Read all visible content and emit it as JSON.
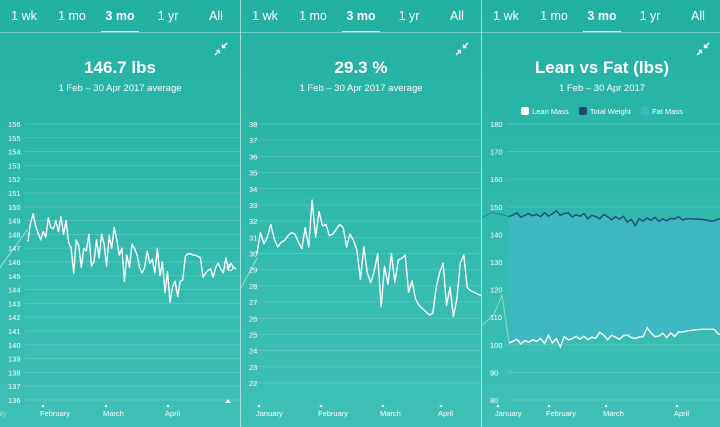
{
  "tabs": [
    "1 wk",
    "1 mo",
    "3 mo",
    "1 yr",
    "All"
  ],
  "active_tab": "3 mo",
  "colors": {
    "line": "#ffffff",
    "grid": "rgba(255,255,255,0.22)",
    "lean": "#ffffff",
    "total": "#1f4a73",
    "fat_fill": "#3eb7c3"
  },
  "icons": {
    "collapse": "collapse-arrows-icon"
  },
  "panels": [
    {
      "title": "146.7 lbs",
      "subtitle": "1 Feb – 30 Apr 2017 average",
      "chart_data": {
        "type": "line",
        "ylim": [
          136,
          156
        ],
        "yticks": [
          136,
          137,
          138,
          139,
          140,
          141,
          142,
          143,
          144,
          145,
          146,
          147,
          148,
          149,
          150,
          151,
          152,
          153,
          154,
          155,
          156
        ],
        "xticks": [
          "February",
          "March",
          "April"
        ],
        "x_edge_labels": [
          "uly"
        ],
        "series": [
          {
            "values": [
              147.5,
              148.8,
              149.5,
              148.6,
              148.1,
              147.6,
              148.2,
              147.8,
              149.2,
              148.5,
              148.4,
              149.0,
              148.2,
              149.3,
              148.0,
              149.0,
              147.4,
              147.0,
              145.2,
              147.6,
              147.2,
              145.6,
              147.0,
              146.8,
              148.0,
              145.7,
              146.0,
              147.6,
              146.3,
              148.0,
              147.3,
              145.7,
              147.9,
              147.0,
              148.5,
              147.6,
              146.5,
              147.0,
              144.6,
              146.5,
              145.6,
              147.3,
              147.0,
              146.5,
              145.6,
              145.2,
              145.6,
              146.8,
              145.9,
              146.2,
              145.2,
              147.0,
              145.0,
              146.0,
              143.8,
              145.3,
              143.1,
              144.2,
              144.6,
              143.5,
              144.6,
              144.7,
              146.4,
              146.6,
              146.6,
              146.5,
              146.5,
              146.4,
              146.3,
              144.9,
              145.2,
              145.4,
              145.5,
              144.9,
              145.6,
              145.9,
              145.5,
              145.2,
              146.3,
              145.5,
              145.9,
              145.6,
              145.5
            ]
          }
        ]
      }
    },
    {
      "title": "29.3 %",
      "subtitle": "1 Feb – 30 Apr 2017 average",
      "chart_data": {
        "type": "line",
        "ylim": [
          22,
          38
        ],
        "yticks": [
          22,
          23,
          24,
          25,
          26,
          27,
          28,
          29,
          30,
          31,
          32,
          33,
          34,
          35,
          36,
          37,
          38
        ],
        "xticks": [
          "January",
          "February",
          "March",
          "April"
        ],
        "series": [
          {
            "values": [
              30.0,
              31.3,
              30.6,
              31.0,
              31.8,
              30.9,
              30.4,
              30.7,
              30.8,
              31.1,
              31.3,
              31.2,
              30.7,
              30.3,
              31.6,
              30.4,
              33.3,
              31.0,
              32.6,
              31.7,
              31.8,
              31.1,
              31.2,
              31.5,
              31.8,
              31.6,
              30.4,
              31.2,
              30.8,
              30.2,
              28.4,
              30.4,
              28.8,
              28.2,
              28.9,
              30.0,
              26.7,
              29.2,
              28.1,
              30.0,
              28.2,
              29.6,
              29.7,
              29.9,
              27.6,
              28.3,
              27.2,
              26.8,
              26.6,
              26.4,
              26.2,
              26.3,
              27.9,
              28.8,
              29.4,
              26.8,
              27.9,
              26.1,
              27.2,
              29.4,
              29.9,
              27.9,
              27.7,
              27.6,
              27.5,
              27.4
            ]
          }
        ]
      }
    },
    {
      "title": "Lean vs Fat (lbs)",
      "subtitle": "1 Feb – 30 Apr 2017",
      "legend": [
        "Lean Mass",
        "Total Weight",
        "Fat Mass"
      ],
      "chart_data": {
        "type": "area",
        "ylim": [
          80,
          180
        ],
        "yticks": [
          80,
          90,
          100,
          110,
          120,
          130,
          140,
          150,
          160,
          170,
          180
        ],
        "xticks": [
          "January",
          "February",
          "March",
          "April"
        ],
        "series": [
          {
            "name": "Total Weight",
            "values": [
              146.5,
              147.0,
              147.8,
              146.2,
              146.9,
              147.5,
              146.7,
              147.3,
              146.4,
              147.9,
              146.6,
              147.5,
              148.6,
              146.9,
              147.6,
              147.8,
              146.3,
              147.1,
              146.6,
              147.5,
              145.6,
              146.9,
              146.5,
              145.6,
              147.2,
              146.4,
              145.3,
              146.4,
              145.5,
              146.6,
              144.5,
              145.4,
              143.2,
              145.7,
              144.8,
              145.9,
              145.1,
              146.2,
              144.7,
              145.6,
              144.9,
              145.8,
              145.6,
              146.4,
              145.2,
              145.7,
              145.7,
              145.5,
              145.5,
              145.4,
              145.3,
              144.8,
              144.9,
              145.5,
              145.6
            ]
          },
          {
            "name": "Lean Mass",
            "values": [
              100.6,
              101.3,
              102.0,
              100.3,
              101.6,
              100.9,
              101.8,
              101.2,
              102.3,
              100.5,
              103.4,
              100.6,
              102.3,
              99.2,
              103.0,
              101.8,
              102.2,
              103.0,
              102.0,
              103.1,
              101.9,
              102.7,
              102.4,
              104.5,
              103.5,
              101.8,
              103.5,
              102.8,
              102.0,
              103.3,
              103.6,
              102.6,
              102.3,
              102.8,
              102.9,
              106.2,
              104.3,
              102.9,
              103.2,
              104.2,
              102.6,
              104.3,
              103.0,
              104.7,
              104.6,
              105.0,
              105.2,
              105.4,
              105.5,
              105.6,
              105.6,
              105.6,
              105.6,
              104.0,
              103.6
            ]
          },
          {
            "name": "Fat Mass",
            "values": [
              45.9,
              45.7,
              45.8,
              45.9,
              45.3,
              46.6,
              44.9,
              46.1,
              44.1,
              47.4,
              43.2,
              46.9,
              46.3,
              47.7,
              44.6,
              46.0,
              44.1,
              44.1,
              44.6,
              44.4,
              43.7,
              44.2,
              44.1,
              41.1,
              43.7,
              44.6,
              41.8,
              43.6,
              43.5,
              43.3,
              40.9,
              42.8,
              40.9,
              42.9,
              41.9,
              39.7,
              40.8,
              43.3,
              41.5,
              41.4,
              42.3,
              41.5,
              42.6,
              41.7,
              40.6,
              40.7,
              40.5,
              40.1,
              40.0,
              39.8,
              39.7,
              39.2,
              39.3,
              41.5,
              42.0
            ]
          }
        ]
      }
    }
  ]
}
